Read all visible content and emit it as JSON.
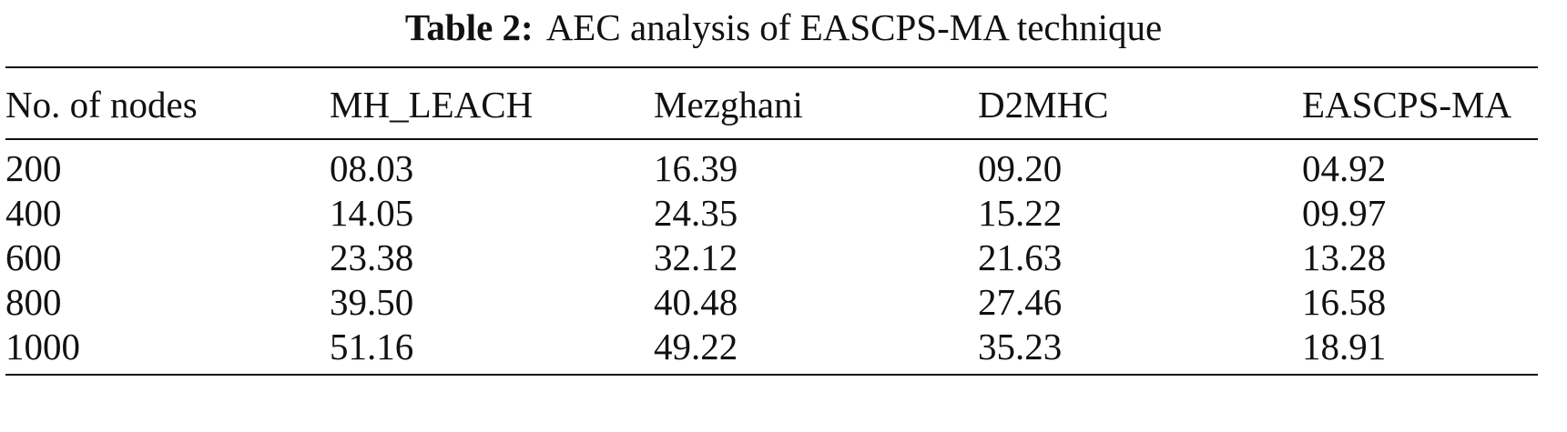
{
  "caption": {
    "label": "Table 2:",
    "text": "AEC analysis of EASCPS-MA technique"
  },
  "table": {
    "headers": [
      "No. of nodes",
      "MH_LEACH",
      "Mezghani",
      "D2MHC",
      "EASCPS-MA"
    ],
    "rows": [
      [
        "200",
        "08.03",
        "16.39",
        "09.20",
        "04.92"
      ],
      [
        "400",
        "14.05",
        "24.35",
        "15.22",
        "09.97"
      ],
      [
        "600",
        "23.38",
        "32.12",
        "21.63",
        "13.28"
      ],
      [
        "800",
        "39.50",
        "40.48",
        "27.46",
        "16.58"
      ],
      [
        "1000",
        "51.16",
        "49.22",
        "35.23",
        "18.91"
      ]
    ]
  }
}
